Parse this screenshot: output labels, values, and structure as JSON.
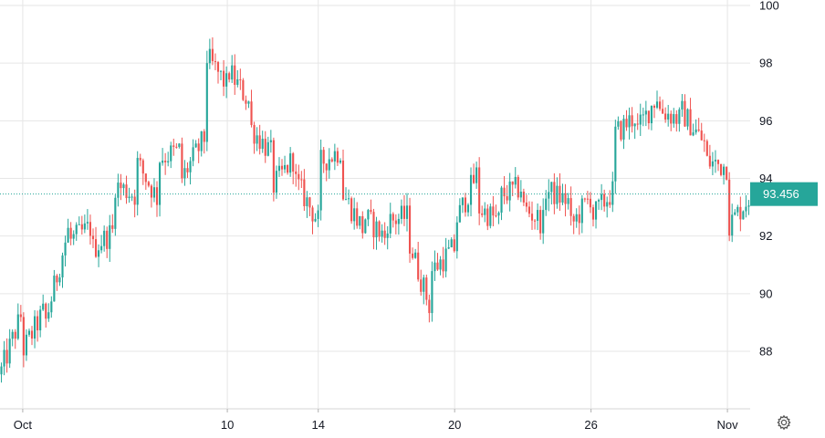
{
  "chart_data": {
    "type": "candlestick",
    "title": "",
    "xlabel": "",
    "ylabel": "",
    "ylim": [
      86,
      100
    ],
    "y_ticks": [
      "88",
      "90",
      "92",
      "94",
      "96",
      "98",
      "100"
    ],
    "x_ticks": [
      {
        "label": "Oct",
        "x": "2024-10-01"
      },
      {
        "label": "10",
        "x": "2024-10-10"
      },
      {
        "label": "14",
        "x": "2024-10-14"
      },
      {
        "label": "20",
        "x": "2024-10-20"
      },
      {
        "label": "26",
        "x": "2024-10-26"
      },
      {
        "label": "Nov",
        "x": "2024-11-01"
      }
    ],
    "x_range": [
      "2024-09-30",
      "2024-11-02"
    ],
    "grid": true,
    "last_price": "93.456",
    "last_price_value": 93.456,
    "colors": {
      "up": "#26a69a",
      "down": "#ef5350",
      "grid": "#e6e6e6",
      "text": "#131722"
    },
    "series_path": [
      [
        "2024-09-30",
        87.2
      ],
      [
        "2024-10-01",
        89.4
      ],
      [
        "2024-10-01",
        88.0
      ],
      [
        "2024-10-02",
        89.5
      ],
      [
        "2024-10-02",
        89.0
      ],
      [
        "2024-10-03",
        92.2
      ],
      [
        "2024-10-03",
        91.8
      ],
      [
        "2024-10-04",
        92.3
      ],
      [
        "2024-10-04",
        91.5
      ],
      [
        "2024-10-05",
        92.2
      ],
      [
        "2024-10-05",
        93.8
      ],
      [
        "2024-10-06",
        93.4
      ],
      [
        "2024-10-06",
        94.6
      ],
      [
        "2024-10-07",
        93.2
      ],
      [
        "2024-10-07",
        94.7
      ],
      [
        "2024-10-08",
        95.0
      ],
      [
        "2024-10-08",
        94.0
      ],
      [
        "2024-10-09",
        95.4
      ],
      [
        "2024-10-09",
        98.3
      ],
      [
        "2024-10-10",
        97.2
      ],
      [
        "2024-10-10",
        97.8
      ],
      [
        "2024-10-11",
        96.6
      ],
      [
        "2024-10-11",
        95.8
      ],
      [
        "2024-10-12",
        94.8
      ],
      [
        "2024-10-12",
        93.7
      ],
      [
        "2024-10-13",
        94.8
      ],
      [
        "2024-10-13",
        93.9
      ],
      [
        "2024-10-14",
        92.5
      ],
      [
        "2024-10-14",
        94.5
      ],
      [
        "2024-10-15",
        95.0
      ],
      [
        "2024-10-15",
        93.6
      ],
      [
        "2024-10-16",
        92.2
      ],
      [
        "2024-10-16",
        92.7
      ],
      [
        "2024-10-17",
        91.9
      ],
      [
        "2024-10-17",
        92.5
      ],
      [
        "2024-10-18",
        92.7
      ],
      [
        "2024-10-18",
        91.8
      ],
      [
        "2024-10-19",
        89.3
      ],
      [
        "2024-10-19",
        90.8
      ],
      [
        "2024-10-20",
        91.6
      ],
      [
        "2024-10-20",
        92.4
      ],
      [
        "2024-10-21",
        94.2
      ],
      [
        "2024-10-21",
        93.0
      ],
      [
        "2024-10-22",
        92.5
      ],
      [
        "2024-10-22",
        93.4
      ],
      [
        "2024-10-23",
        93.7
      ],
      [
        "2024-10-23",
        93.0
      ],
      [
        "2024-10-24",
        92.4
      ],
      [
        "2024-10-24",
        93.6
      ],
      [
        "2024-10-25",
        93.2
      ],
      [
        "2024-10-25",
        92.2
      ],
      [
        "2024-10-26",
        93.4
      ],
      [
        "2024-10-26",
        92.6
      ],
      [
        "2024-10-27",
        93.6
      ],
      [
        "2024-10-27",
        95.5
      ],
      [
        "2024-10-28",
        96.2
      ],
      [
        "2024-10-28",
        95.6
      ],
      [
        "2024-10-29",
        97.0
      ],
      [
        "2024-10-29",
        96.4
      ],
      [
        "2024-10-30",
        96.0
      ],
      [
        "2024-10-30",
        96.3
      ],
      [
        "2024-10-31",
        95.2
      ],
      [
        "2024-10-31",
        94.6
      ],
      [
        "2024-11-01",
        94.4
      ],
      [
        "2024-11-01",
        92.3
      ],
      [
        "2024-11-02",
        93.4
      ]
    ]
  },
  "toolbar": {
    "settings_icon": "gear-icon"
  }
}
